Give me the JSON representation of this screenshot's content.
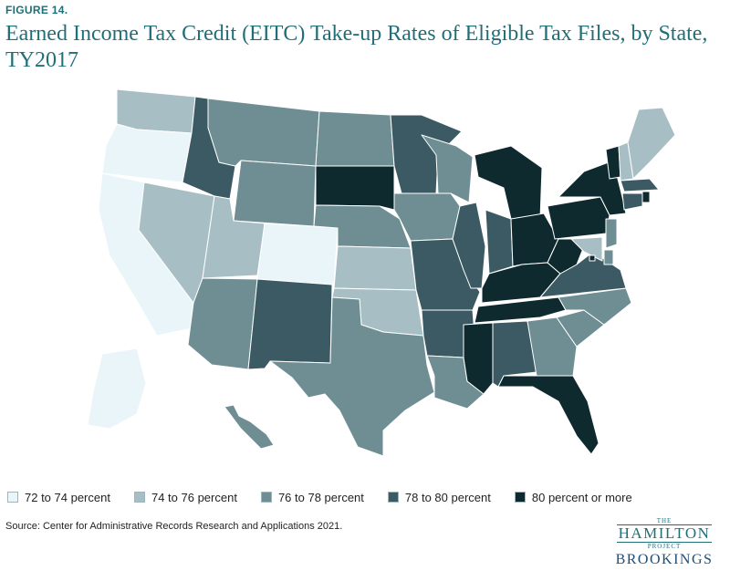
{
  "figure_label": "FIGURE 14.",
  "title": "Earned Income Tax Credit (EITC) Take-up Rates of Eligible Tax Files, by State, TY2017",
  "legend": [
    {
      "label": "72 to 74 percent",
      "color": "#eaf5f9"
    },
    {
      "label": "74 to 76 percent",
      "color": "#a7bfc4"
    },
    {
      "label": "76 to 78 percent",
      "color": "#6f8e93"
    },
    {
      "label": "78 to 80 percent",
      "color": "#3c5a63"
    },
    {
      "label": "80 percent or more",
      "color": "#0f2a2f"
    }
  ],
  "source": "Source:  Center for Administrative Records Research and Applications 2021.",
  "brand": {
    "the": "THE",
    "hamilton": "HAMILTON",
    "project": "PROJECT",
    "brookings": "BROOKINGS"
  },
  "chart_data": {
    "type": "choropleth",
    "states": {
      "WA": "74 to 76 percent",
      "OR": "72 to 74 percent",
      "CA": "72 to 74 percent",
      "NV": "74 to 76 percent",
      "ID": "78 to 80 percent",
      "MT": "76 to 78 percent",
      "WY": "76 to 78 percent",
      "UT": "74 to 76 percent",
      "CO": "72 to 74 percent",
      "AZ": "76 to 78 percent",
      "NM": "78 to 80 percent",
      "ND": "76 to 78 percent",
      "SD": "80 percent or more",
      "NE": "76 to 78 percent",
      "KS": "74 to 76 percent",
      "OK": "74 to 76 percent",
      "TX": "76 to 78 percent",
      "MN": "78 to 80 percent",
      "IA": "76 to 78 percent",
      "MO": "78 to 80 percent",
      "AR": "78 to 80 percent",
      "LA": "76 to 78 percent",
      "WI": "76 to 78 percent",
      "IL": "78 to 80 percent",
      "MI": "80 percent or more",
      "IN": "78 to 80 percent",
      "OH": "80 percent or more",
      "KY": "80 percent or more",
      "TN": "80 percent or more",
      "MS": "80 percent or more",
      "AL": "78 to 80 percent",
      "GA": "76 to 78 percent",
      "FL": "80 percent or more",
      "SC": "76 to 78 percent",
      "NC": "76 to 78 percent",
      "VA": "78 to 80 percent",
      "WV": "80 percent or more",
      "PA": "80 percent or more",
      "NY": "80 percent or more",
      "VT": "80 percent or more",
      "NH": "74 to 76 percent",
      "ME": "74 to 76 percent",
      "MA": "78 to 80 percent",
      "RI": "80 percent or more",
      "CT": "78 to 80 percent",
      "NJ": "76 to 78 percent",
      "DE": "76 to 78 percent",
      "MD": "74 to 76 percent",
      "DC": "80 percent or more",
      "AK": "72 to 74 percent",
      "HI": "76 to 78 percent"
    }
  }
}
